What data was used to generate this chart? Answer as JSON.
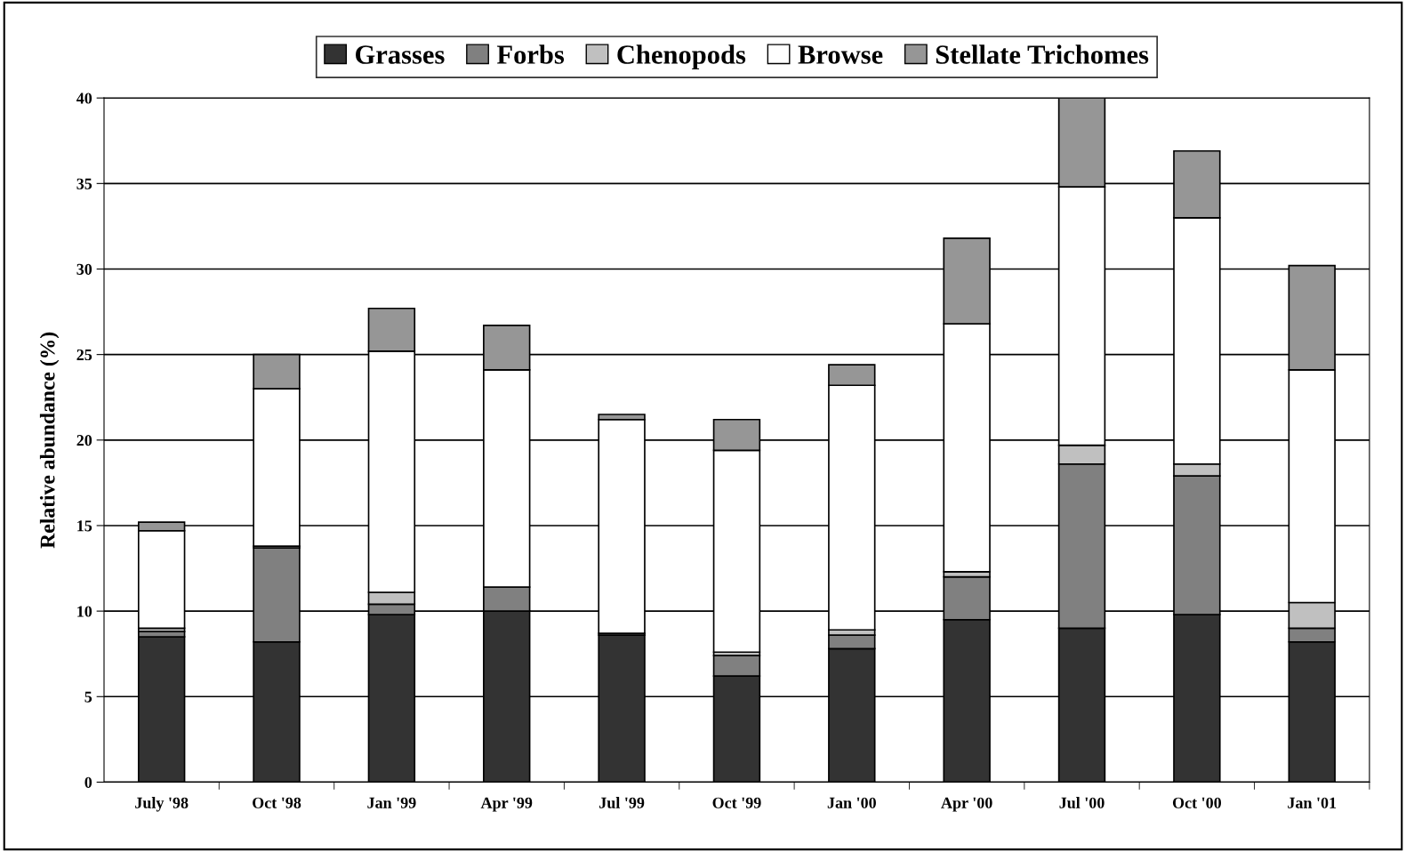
{
  "chart_data": {
    "type": "bar",
    "stacked": true,
    "ylabel": "Relative abundance (%)",
    "categories": [
      "July '98",
      "Oct '98",
      "Jan '99",
      "Apr '99",
      "Jul '99",
      "Oct '99",
      "Jan '00",
      "Apr '00",
      "Jul '00",
      "Oct '00",
      "Jan '01"
    ],
    "series": [
      {
        "name": "Grasses",
        "color": "#333333",
        "values": [
          8.5,
          8.2,
          9.8,
          10.0,
          8.6,
          6.2,
          7.8,
          9.5,
          9.0,
          9.8,
          8.2
        ]
      },
      {
        "name": "Forbs",
        "color": "#808080",
        "values": [
          0.3,
          5.5,
          0.6,
          1.4,
          0.1,
          1.2,
          0.8,
          2.5,
          9.6,
          8.1,
          0.8
        ]
      },
      {
        "name": "Chenopods",
        "color": "#c0c0c0",
        "values": [
          0.2,
          0.1,
          0.7,
          0,
          0,
          0.2,
          0.3,
          0.3,
          1.1,
          0.7,
          1.5
        ]
      },
      {
        "name": "Browse",
        "color": "#ffffff",
        "values": [
          5.7,
          9.2,
          14.1,
          12.7,
          12.5,
          11.8,
          14.3,
          14.5,
          15.1,
          14.4,
          13.6
        ]
      },
      {
        "name": "Stellate Trichomes",
        "color": "#969696",
        "values": [
          0.5,
          2.0,
          2.5,
          2.6,
          0.3,
          1.8,
          1.2,
          5.0,
          5.2,
          3.9,
          6.1
        ]
      }
    ],
    "ylim": [
      0,
      40
    ],
    "yticks": [
      0,
      5,
      10,
      15,
      20,
      25,
      30,
      35,
      40
    ],
    "grid": "y",
    "legend": "top"
  }
}
